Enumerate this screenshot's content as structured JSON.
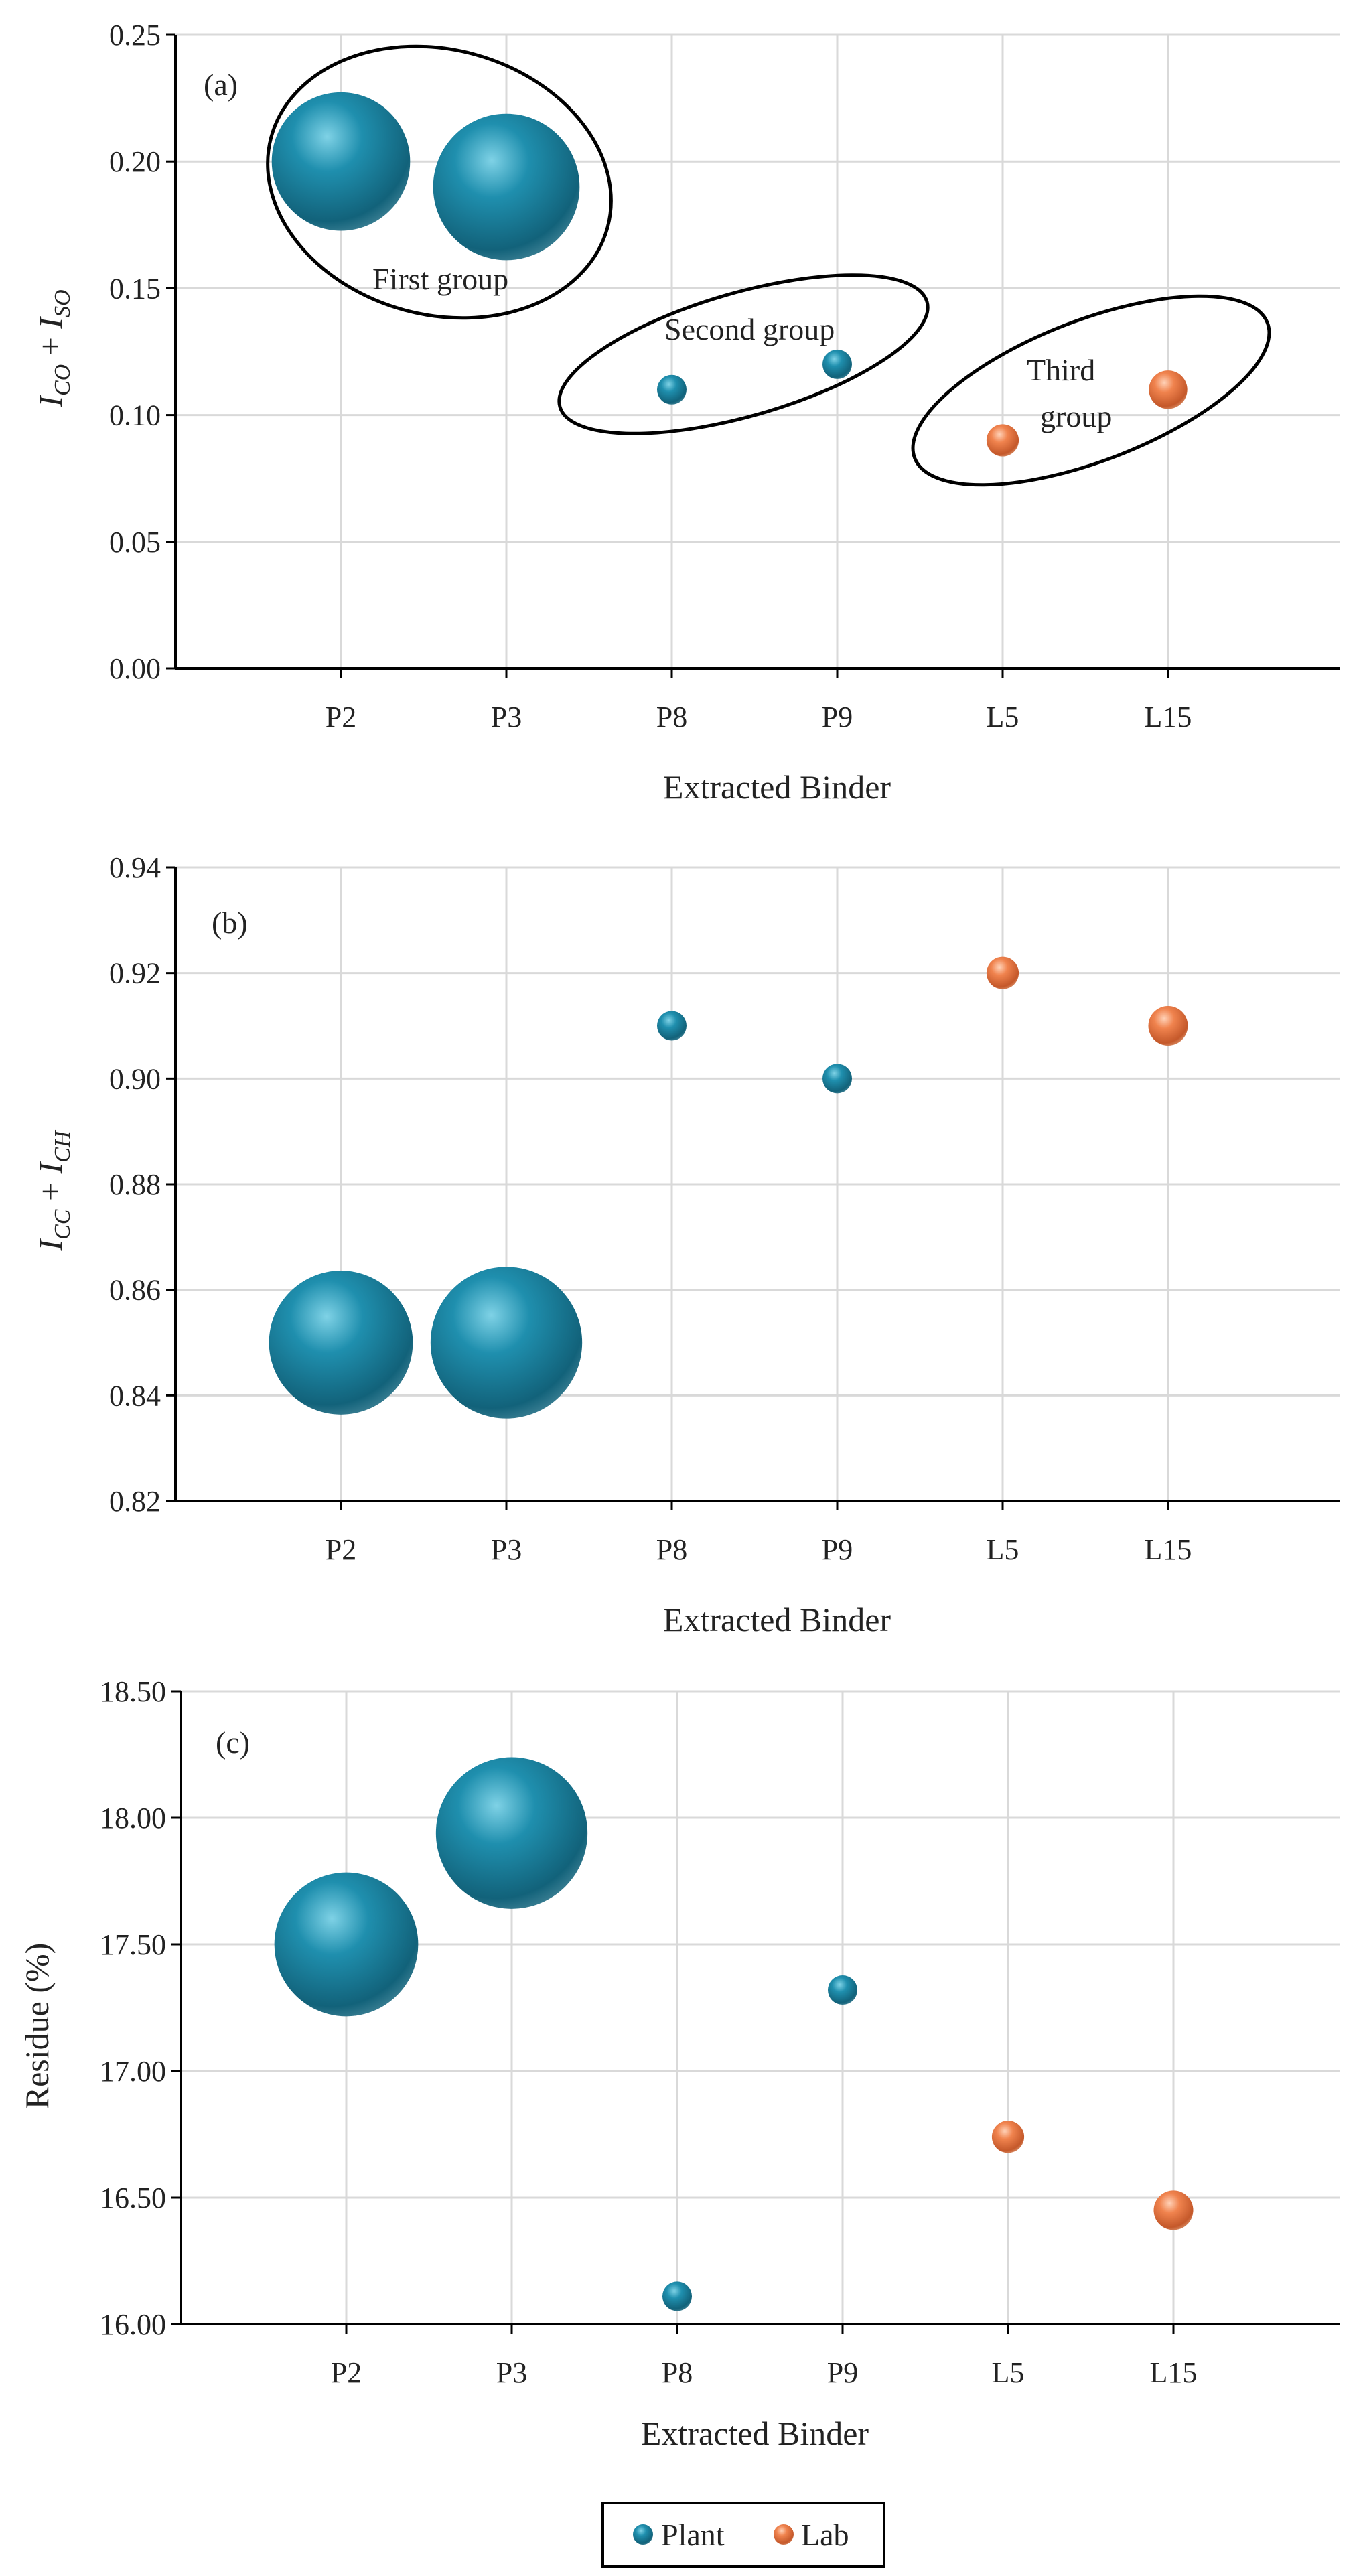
{
  "colors": {
    "plant": "#1f8fae",
    "plant_dark": "#0f5e74",
    "lab": "#f0834e",
    "lab_dark": "#c8582a",
    "grid": "#d9d9d9",
    "axis": "#000000"
  },
  "legend": {
    "plant_label": "Plant",
    "lab_label": "Lab"
  },
  "chart_data": [
    {
      "type": "scatter",
      "panel_label": "(a)",
      "xlabel": "Extracted Binder",
      "ylabel": {
        "main1": "I",
        "sub1": "CO",
        "plus": " + ",
        "main2": "I",
        "sub2": "SO"
      },
      "categories": [
        "P2",
        "P3",
        "P8",
        "P9",
        "L5",
        "L15"
      ],
      "ylim": [
        0,
        0.25
      ],
      "yticks": [
        "0.00",
        "0.05",
        "0.10",
        "0.15",
        "0.20",
        "0.25"
      ],
      "grid": true,
      "series": [
        {
          "name": "Plant",
          "points": [
            {
              "x": "P2",
              "y": 0.2,
              "size": 5
            },
            {
              "x": "P3",
              "y": 0.19,
              "size": 5.6
            },
            {
              "x": "P8",
              "y": 0.11,
              "size": 1
            },
            {
              "x": "P9",
              "y": 0.12,
              "size": 1
            }
          ]
        },
        {
          "name": "Lab",
          "points": [
            {
              "x": "L5",
              "y": 0.09,
              "size": 1.2
            },
            {
              "x": "L15",
              "y": 0.11,
              "size": 1.7
            }
          ]
        }
      ],
      "annotations": [
        {
          "lines": [
            "First group"
          ]
        },
        {
          "lines": [
            "Second group"
          ]
        },
        {
          "lines": [
            "Third",
            "group"
          ]
        }
      ]
    },
    {
      "type": "scatter",
      "panel_label": "(b)",
      "xlabel": "Extracted Binder",
      "ylabel": {
        "main1": "I",
        "sub1": "CC",
        "plus": " + ",
        "main2": "I",
        "sub2": "CH"
      },
      "categories": [
        "P2",
        "P3",
        "P8",
        "P9",
        "L5",
        "L15"
      ],
      "ylim": [
        0.82,
        0.94
      ],
      "yticks": [
        "0.82",
        "0.84",
        "0.86",
        "0.88",
        "0.90",
        "0.92",
        "0.94"
      ],
      "grid": true,
      "series": [
        {
          "name": "Plant",
          "points": [
            {
              "x": "P2",
              "y": 0.85,
              "size": 5.4
            },
            {
              "x": "P3",
              "y": 0.85,
              "size": 6
            },
            {
              "x": "P8",
              "y": 0.91,
              "size": 1
            },
            {
              "x": "P9",
              "y": 0.9,
              "size": 1
            }
          ]
        },
        {
          "name": "Lab",
          "points": [
            {
              "x": "L5",
              "y": 0.92,
              "size": 1.2
            },
            {
              "x": "L15",
              "y": 0.91,
              "size": 1.8
            }
          ]
        }
      ],
      "annotations": []
    },
    {
      "type": "scatter",
      "panel_label": "(c)",
      "xlabel": "Extracted Binder",
      "ylabel": {
        "text": "Residue (%)"
      },
      "categories": [
        "P2",
        "P3",
        "P8",
        "P9",
        "L5",
        "L15"
      ],
      "ylim": [
        16.0,
        18.5
      ],
      "yticks": [
        "16.00",
        "16.50",
        "17.00",
        "17.50",
        "18.00",
        "18.50"
      ],
      "grid": true,
      "series": [
        {
          "name": "Plant",
          "points": [
            {
              "x": "P2",
              "y": 17.5,
              "size": 5.4
            },
            {
              "x": "P3",
              "y": 17.94,
              "size": 6
            },
            {
              "x": "P8",
              "y": 16.11,
              "size": 1
            },
            {
              "x": "P9",
              "y": 17.32,
              "size": 1
            }
          ]
        },
        {
          "name": "Lab",
          "points": [
            {
              "x": "L5",
              "y": 16.74,
              "size": 1.2
            },
            {
              "x": "L15",
              "y": 16.45,
              "size": 1.8
            }
          ]
        }
      ],
      "annotations": []
    }
  ]
}
